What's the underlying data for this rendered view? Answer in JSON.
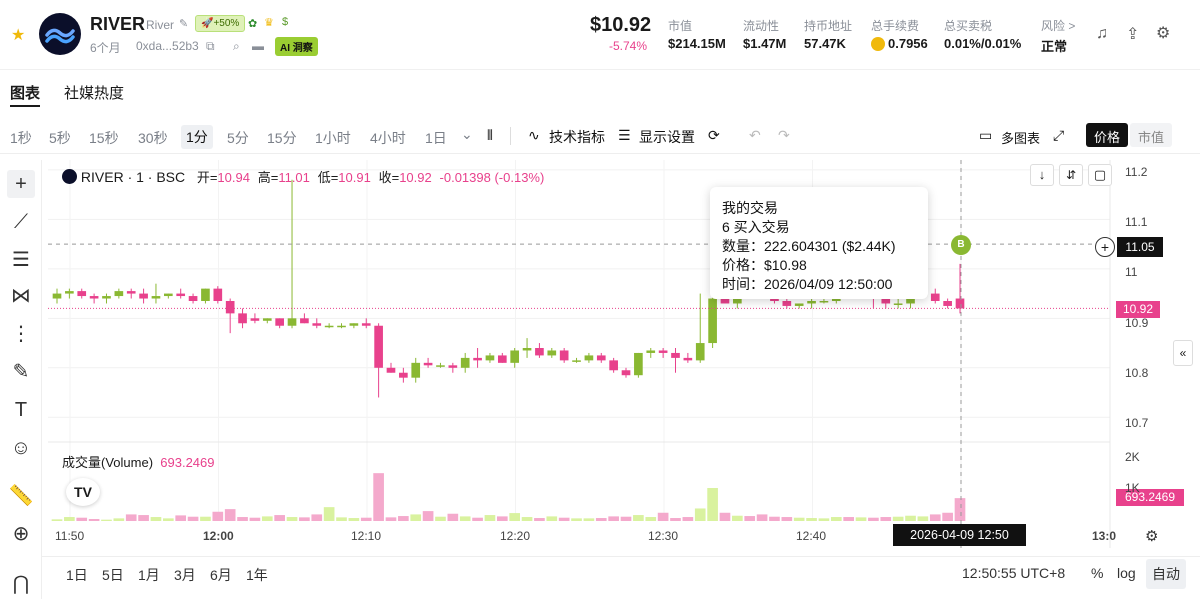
{
  "header": {
    "token_name": "RIVER",
    "token_sub": "River",
    "pump_badge": "+50%",
    "age": "6个月",
    "address": "0xda...52b3",
    "ai_badge": "AI 洞察",
    "price": "$10.92",
    "price_change": "-5.74%",
    "stats": [
      {
        "label": "市值",
        "value": "$214.15M"
      },
      {
        "label": "流动性",
        "value": "$1.47M"
      },
      {
        "label": "持币地址",
        "value": "57.47K"
      },
      {
        "label": "总手续费",
        "value": "0.7956"
      },
      {
        "label": "总买卖税",
        "value": "0.01%/0.01%"
      },
      {
        "label": "风险 >",
        "value": "正常"
      }
    ]
  },
  "tabs": [
    "图表",
    "社媒热度"
  ],
  "toolbar": {
    "timeframes": [
      "1秒",
      "5秒",
      "15秒",
      "30秒",
      "1分",
      "5分",
      "15分",
      "1小时",
      "4小时",
      "1日"
    ],
    "active_timeframe": "1分",
    "indicators": "技术指标",
    "display_settings": "显示设置",
    "multi_chart": "多图表",
    "price_btn": "价格",
    "mcap_btn": "市值"
  },
  "chart": {
    "symbol": "RIVER · 1 · BSC",
    "o_label": "开=",
    "o": "10.94",
    "h_label": "高=",
    "h": "11.01",
    "l_label": "低=",
    "l": "10.91",
    "c_label": "收=",
    "c": "10.92",
    "change": "-0.01398 (-0.13%)",
    "volume_label": "成交量(Volume)",
    "volume_value": "693.2469",
    "price_axis": [
      "11.2",
      "11.1",
      "11",
      "10.9",
      "10.8",
      "10.7"
    ],
    "vol_axis": [
      "2K",
      "1K"
    ],
    "time_axis": [
      "11:50",
      "12:00",
      "12:10",
      "12:20",
      "12:30",
      "12:40",
      "13:0"
    ],
    "crosshair_price": "11.05",
    "current_price": "10.92",
    "current_volume": "693.2469",
    "crosshair_time": "2026-04-09   12:50",
    "tooltip": {
      "title": "我的交易",
      "line1": "6 买入交易",
      "line2": "数量：222.604301 ($2.44K)",
      "line3": "价格：$10.98",
      "line4": "时间：2026/04/09 12:50:00"
    }
  },
  "bottom": {
    "ranges": [
      "1日",
      "5日",
      "1月",
      "3月",
      "6月",
      "1年"
    ],
    "clock": "12:50:55 UTC+8",
    "pct": "%",
    "log": "log",
    "auto": "自动"
  },
  "chart_data": {
    "type": "candlestick",
    "interval": "1m",
    "ylim": [
      10.65,
      11.22
    ],
    "candles": [
      {
        "o": 10.94,
        "h": 10.96,
        "l": 10.93,
        "c": 10.95,
        "v": 50
      },
      {
        "o": 10.95,
        "h": 10.96,
        "l": 10.94,
        "c": 10.955,
        "v": 120
      },
      {
        "o": 10.955,
        "h": 10.96,
        "l": 10.94,
        "c": 10.945,
        "v": 100
      },
      {
        "o": 10.945,
        "h": 10.95,
        "l": 10.93,
        "c": 10.94,
        "v": 60
      },
      {
        "o": 10.94,
        "h": 10.95,
        "l": 10.93,
        "c": 10.945,
        "v": 40
      },
      {
        "o": 10.945,
        "h": 10.96,
        "l": 10.94,
        "c": 10.955,
        "v": 80
      },
      {
        "o": 10.955,
        "h": 10.96,
        "l": 10.94,
        "c": 10.95,
        "v": 200
      },
      {
        "o": 10.95,
        "h": 10.96,
        "l": 10.93,
        "c": 10.94,
        "v": 180
      },
      {
        "o": 10.94,
        "h": 10.97,
        "l": 10.93,
        "c": 10.945,
        "v": 120
      },
      {
        "o": 10.945,
        "h": 10.95,
        "l": 10.94,
        "c": 10.95,
        "v": 80
      },
      {
        "o": 10.95,
        "h": 10.96,
        "l": 10.94,
        "c": 10.945,
        "v": 170
      },
      {
        "o": 10.945,
        "h": 10.95,
        "l": 10.93,
        "c": 10.935,
        "v": 130
      },
      {
        "o": 10.935,
        "h": 10.96,
        "l": 10.93,
        "c": 10.96,
        "v": 130
      },
      {
        "o": 10.96,
        "h": 10.965,
        "l": 10.93,
        "c": 10.935,
        "v": 280
      },
      {
        "o": 10.935,
        "h": 10.94,
        "l": 10.87,
        "c": 10.91,
        "v": 360
      },
      {
        "o": 10.91,
        "h": 10.92,
        "l": 10.88,
        "c": 10.89,
        "v": 120
      },
      {
        "o": 10.9,
        "h": 10.91,
        "l": 10.89,
        "c": 10.895,
        "v": 100
      },
      {
        "o": 10.895,
        "h": 10.9,
        "l": 10.89,
        "c": 10.9,
        "v": 140
      },
      {
        "o": 10.9,
        "h": 10.9,
        "l": 10.88,
        "c": 10.885,
        "v": 180
      },
      {
        "o": 10.885,
        "h": 11.18,
        "l": 10.88,
        "c": 10.9,
        "v": 120
      },
      {
        "o": 10.9,
        "h": 10.91,
        "l": 10.89,
        "c": 10.89,
        "v": 110
      },
      {
        "o": 10.89,
        "h": 10.9,
        "l": 10.88,
        "c": 10.885,
        "v": 200
      },
      {
        "o": 10.885,
        "h": 10.89,
        "l": 10.88,
        "c": 10.885,
        "v": 420
      },
      {
        "o": 10.885,
        "h": 10.89,
        "l": 10.88,
        "c": 10.885,
        "v": 110
      },
      {
        "o": 10.885,
        "h": 10.89,
        "l": 10.88,
        "c": 10.89,
        "v": 90
      },
      {
        "o": 10.89,
        "h": 10.9,
        "l": 10.88,
        "c": 10.885,
        "v": 100
      },
      {
        "o": 10.885,
        "h": 10.89,
        "l": 10.74,
        "c": 10.8,
        "v": 1450
      },
      {
        "o": 10.8,
        "h": 10.81,
        "l": 10.79,
        "c": 10.79,
        "v": 110
      },
      {
        "o": 10.79,
        "h": 10.8,
        "l": 10.77,
        "c": 10.78,
        "v": 150
      },
      {
        "o": 10.78,
        "h": 10.82,
        "l": 10.77,
        "c": 10.81,
        "v": 200
      },
      {
        "o": 10.81,
        "h": 10.82,
        "l": 10.8,
        "c": 10.805,
        "v": 300
      },
      {
        "o": 10.805,
        "h": 10.81,
        "l": 10.8,
        "c": 10.805,
        "v": 130
      },
      {
        "o": 10.805,
        "h": 10.81,
        "l": 10.79,
        "c": 10.8,
        "v": 220
      },
      {
        "o": 10.8,
        "h": 10.83,
        "l": 10.79,
        "c": 10.82,
        "v": 140
      },
      {
        "o": 10.82,
        "h": 10.84,
        "l": 10.8,
        "c": 10.815,
        "v": 100
      },
      {
        "o": 10.815,
        "h": 10.83,
        "l": 10.81,
        "c": 10.825,
        "v": 180
      },
      {
        "o": 10.825,
        "h": 10.83,
        "l": 10.81,
        "c": 10.81,
        "v": 140
      },
      {
        "o": 10.81,
        "h": 10.84,
        "l": 10.8,
        "c": 10.835,
        "v": 240
      },
      {
        "o": 10.835,
        "h": 10.86,
        "l": 10.82,
        "c": 10.84,
        "v": 120
      },
      {
        "o": 10.84,
        "h": 10.85,
        "l": 10.82,
        "c": 10.825,
        "v": 90
      },
      {
        "o": 10.825,
        "h": 10.84,
        "l": 10.82,
        "c": 10.835,
        "v": 140
      },
      {
        "o": 10.835,
        "h": 10.84,
        "l": 10.81,
        "c": 10.815,
        "v": 100
      },
      {
        "o": 10.815,
        "h": 10.82,
        "l": 10.81,
        "c": 10.815,
        "v": 80
      },
      {
        "o": 10.815,
        "h": 10.83,
        "l": 10.81,
        "c": 10.825,
        "v": 80
      },
      {
        "o": 10.825,
        "h": 10.83,
        "l": 10.81,
        "c": 10.815,
        "v": 90
      },
      {
        "o": 10.815,
        "h": 10.82,
        "l": 10.79,
        "c": 10.795,
        "v": 140
      },
      {
        "o": 10.795,
        "h": 10.8,
        "l": 10.78,
        "c": 10.785,
        "v": 130
      },
      {
        "o": 10.785,
        "h": 10.83,
        "l": 10.78,
        "c": 10.83,
        "v": 180
      },
      {
        "o": 10.83,
        "h": 10.84,
        "l": 10.82,
        "c": 10.835,
        "v": 120
      },
      {
        "o": 10.835,
        "h": 10.84,
        "l": 10.82,
        "c": 10.83,
        "v": 250
      },
      {
        "o": 10.83,
        "h": 10.84,
        "l": 10.79,
        "c": 10.82,
        "v": 90
      },
      {
        "o": 10.82,
        "h": 10.83,
        "l": 10.81,
        "c": 10.815,
        "v": 120
      },
      {
        "o": 10.815,
        "h": 10.95,
        "l": 10.81,
        "c": 10.85,
        "v": 380
      },
      {
        "o": 10.85,
        "h": 10.95,
        "l": 10.84,
        "c": 10.94,
        "v": 1000
      },
      {
        "o": 10.94,
        "h": 10.96,
        "l": 10.93,
        "c": 10.93,
        "v": 250
      },
      {
        "o": 10.93,
        "h": 10.97,
        "l": 10.92,
        "c": 10.96,
        "v": 160
      },
      {
        "o": 10.96,
        "h": 10.97,
        "l": 10.95,
        "c": 10.955,
        "v": 150
      },
      {
        "o": 10.955,
        "h": 10.96,
        "l": 10.94,
        "c": 10.95,
        "v": 200
      },
      {
        "o": 10.95,
        "h": 10.96,
        "l": 10.93,
        "c": 10.935,
        "v": 130
      },
      {
        "o": 10.935,
        "h": 10.94,
        "l": 10.92,
        "c": 10.925,
        "v": 120
      },
      {
        "o": 10.925,
        "h": 10.93,
        "l": 10.92,
        "c": 10.93,
        "v": 100
      },
      {
        "o": 10.93,
        "h": 10.95,
        "l": 10.92,
        "c": 10.935,
        "v": 90
      },
      {
        "o": 10.935,
        "h": 10.94,
        "l": 10.93,
        "c": 10.935,
        "v": 80
      },
      {
        "o": 10.935,
        "h": 10.96,
        "l": 10.93,
        "c": 10.955,
        "v": 120
      },
      {
        "o": 10.955,
        "h": 10.96,
        "l": 10.94,
        "c": 10.945,
        "v": 120
      },
      {
        "o": 10.945,
        "h": 10.96,
        "l": 10.94,
        "c": 10.955,
        "v": 110
      },
      {
        "o": 10.955,
        "h": 11.03,
        "l": 10.92,
        "c": 10.94,
        "v": 100
      },
      {
        "o": 10.94,
        "h": 10.95,
        "l": 10.92,
        "c": 10.93,
        "v": 120
      },
      {
        "o": 10.93,
        "h": 10.94,
        "l": 10.92,
        "c": 10.93,
        "v": 130
      },
      {
        "o": 10.93,
        "h": 10.95,
        "l": 10.92,
        "c": 10.945,
        "v": 160
      },
      {
        "o": 10.945,
        "h": 10.95,
        "l": 10.94,
        "c": 10.95,
        "v": 140
      },
      {
        "o": 10.95,
        "h": 10.96,
        "l": 10.93,
        "c": 10.935,
        "v": 200
      },
      {
        "o": 10.935,
        "h": 10.94,
        "l": 10.92,
        "c": 10.925,
        "v": 250
      },
      {
        "o": 10.94,
        "h": 11.01,
        "l": 10.91,
        "c": 10.92,
        "v": 693
      }
    ]
  }
}
